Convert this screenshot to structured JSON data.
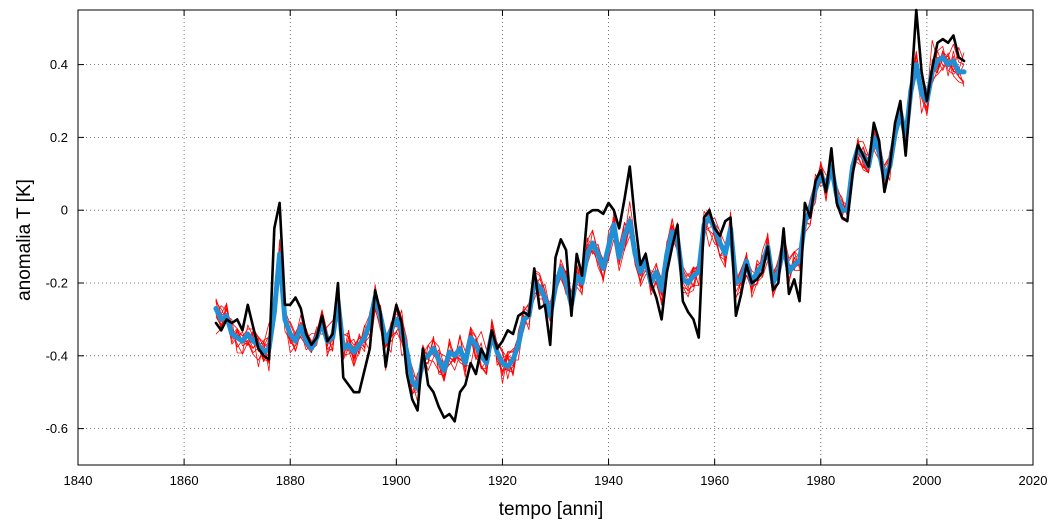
{
  "chart_data": {
    "type": "line",
    "title": "",
    "xlabel": "tempo [anni]",
    "ylabel": "anomalia T [K]",
    "xlim": [
      1840,
      2020
    ],
    "ylim": [
      -0.7,
      0.55
    ],
    "x_ticks": [
      1840,
      1860,
      1880,
      1900,
      1920,
      1940,
      1960,
      1980,
      2000,
      2020
    ],
    "x_tick_labels": [
      "1840",
      "1860",
      "1880",
      "1900",
      "1920",
      "1940",
      "1960",
      "1980",
      "2000",
      "2020"
    ],
    "y_ticks": [
      -0.6,
      -0.4,
      -0.2,
      0,
      0.2,
      0.4
    ],
    "y_tick_labels": [
      "-0.6",
      "-0.4",
      "-0.2",
      "0",
      "0.2",
      "0.4"
    ],
    "grid": true,
    "legend": "none",
    "colors": {
      "ensemble": "#ff0000",
      "ensemble_mean": "#1f8fd6",
      "observed": "#000000"
    },
    "x": [
      1866,
      1867,
      1868,
      1869,
      1870,
      1871,
      1872,
      1873,
      1874,
      1875,
      1876,
      1877,
      1878,
      1879,
      1880,
      1881,
      1882,
      1883,
      1884,
      1885,
      1886,
      1887,
      1888,
      1889,
      1890,
      1891,
      1892,
      1893,
      1894,
      1895,
      1896,
      1897,
      1898,
      1899,
      1900,
      1901,
      1902,
      1903,
      1904,
      1905,
      1906,
      1907,
      1908,
      1909,
      1910,
      1911,
      1912,
      1913,
      1914,
      1915,
      1916,
      1917,
      1918,
      1919,
      1920,
      1921,
      1922,
      1923,
      1924,
      1925,
      1926,
      1927,
      1928,
      1929,
      1930,
      1931,
      1932,
      1933,
      1934,
      1935,
      1936,
      1937,
      1938,
      1939,
      1940,
      1941,
      1942,
      1943,
      1944,
      1945,
      1946,
      1947,
      1948,
      1949,
      1950,
      1951,
      1952,
      1953,
      1954,
      1955,
      1956,
      1957,
      1958,
      1959,
      1960,
      1961,
      1962,
      1963,
      1964,
      1965,
      1966,
      1967,
      1968,
      1969,
      1970,
      1971,
      1972,
      1973,
      1974,
      1975,
      1976,
      1977,
      1978,
      1979,
      1980,
      1981,
      1982,
      1983,
      1984,
      1985,
      1986,
      1987,
      1988,
      1989,
      1990,
      1991,
      1992,
      1993,
      1994,
      1995,
      1996,
      1997,
      1998,
      1999,
      2000,
      2001,
      2002,
      2003,
      2004,
      2005,
      2006,
      2007
    ],
    "series": [
      {
        "values": [
          -0.31,
          -0.33,
          -0.3,
          -0.31,
          -0.3,
          -0.33,
          -0.26,
          -0.32,
          -0.38,
          -0.4,
          -0.41,
          -0.05,
          0.02,
          -0.26,
          -0.26,
          -0.24,
          -0.27,
          -0.34,
          -0.37,
          -0.35,
          -0.29,
          -0.36,
          -0.34,
          -0.2,
          -0.46,
          -0.48,
          -0.5,
          -0.5,
          -0.44,
          -0.38,
          -0.22,
          -0.28,
          -0.43,
          -0.33,
          -0.26,
          -0.31,
          -0.45,
          -0.52,
          -0.55,
          -0.38,
          -0.48,
          -0.5,
          -0.54,
          -0.57,
          -0.56,
          -0.58,
          -0.5,
          -0.48,
          -0.42,
          -0.45,
          -0.38,
          -0.41,
          -0.33,
          -0.38,
          -0.36,
          -0.33,
          -0.34,
          -0.29,
          -0.28,
          -0.29,
          -0.16,
          -0.27,
          -0.26,
          -0.37,
          -0.13,
          -0.08,
          -0.11,
          -0.29,
          -0.12,
          -0.18,
          -0.01,
          0.0,
          0.0,
          -0.01,
          0.02,
          0.0,
          -0.05,
          0.03,
          0.12,
          -0.03,
          -0.15,
          -0.12,
          -0.2,
          -0.24,
          -0.3,
          -0.17,
          -0.1,
          -0.04,
          -0.25,
          -0.28,
          -0.3,
          -0.35,
          -0.02,
          0.0,
          -0.05,
          -0.07,
          -0.03,
          -0.02,
          -0.29,
          -0.23,
          -0.15,
          -0.2,
          -0.19,
          -0.17,
          -0.1,
          -0.22,
          -0.2,
          -0.05,
          -0.23,
          -0.19,
          -0.25,
          0.02,
          -0.02,
          0.08,
          0.11,
          0.05,
          0.17,
          0.02,
          -0.02,
          -0.03,
          0.1,
          0.18,
          0.15,
          0.12,
          0.24,
          0.19,
          0.05,
          0.12,
          0.24,
          0.3,
          0.15,
          0.33,
          0.55,
          0.38,
          0.3,
          0.39,
          0.46,
          0.47,
          0.46,
          0.48,
          0.42,
          0.41
        ]
      },
      {
        "values": [
          -0.27,
          -0.3,
          -0.29,
          -0.34,
          -0.35,
          -0.36,
          -0.34,
          -0.36,
          -0.37,
          -0.39,
          -0.38,
          -0.28,
          -0.12,
          -0.3,
          -0.34,
          -0.36,
          -0.32,
          -0.36,
          -0.38,
          -0.35,
          -0.31,
          -0.36,
          -0.35,
          -0.25,
          -0.38,
          -0.37,
          -0.39,
          -0.37,
          -0.35,
          -0.31,
          -0.24,
          -0.29,
          -0.36,
          -0.33,
          -0.3,
          -0.33,
          -0.39,
          -0.47,
          -0.49,
          -0.41,
          -0.4,
          -0.38,
          -0.41,
          -0.44,
          -0.39,
          -0.4,
          -0.38,
          -0.42,
          -0.35,
          -0.37,
          -0.4,
          -0.42,
          -0.34,
          -0.39,
          -0.42,
          -0.43,
          -0.41,
          -0.37,
          -0.3,
          -0.29,
          -0.2,
          -0.21,
          -0.24,
          -0.29,
          -0.21,
          -0.16,
          -0.2,
          -0.26,
          -0.18,
          -0.2,
          -0.12,
          -0.09,
          -0.12,
          -0.16,
          -0.1,
          -0.04,
          -0.13,
          -0.07,
          -0.03,
          -0.12,
          -0.17,
          -0.14,
          -0.2,
          -0.17,
          -0.22,
          -0.12,
          -0.06,
          -0.08,
          -0.19,
          -0.2,
          -0.18,
          -0.17,
          -0.04,
          -0.02,
          -0.05,
          -0.09,
          -0.12,
          -0.05,
          -0.2,
          -0.19,
          -0.14,
          -0.2,
          -0.17,
          -0.15,
          -0.1,
          -0.2,
          -0.17,
          -0.1,
          -0.17,
          -0.15,
          -0.14,
          -0.03,
          0.0,
          0.06,
          0.1,
          0.06,
          0.12,
          0.04,
          0.0,
          0.0,
          0.12,
          0.17,
          0.15,
          0.12,
          0.2,
          0.16,
          0.09,
          0.12,
          0.21,
          0.27,
          0.2,
          0.33,
          0.4,
          0.32,
          0.3,
          0.38,
          0.41,
          0.42,
          0.4,
          0.41,
          0.38,
          0.38
        ]
      }
    ]
  }
}
